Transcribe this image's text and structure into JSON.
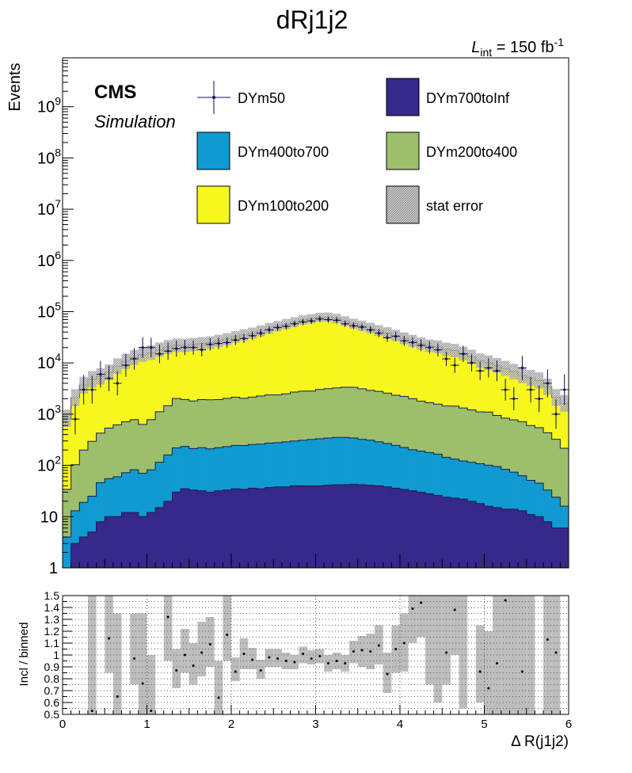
{
  "title": "dRj1j2",
  "lumi": {
    "symbol": "L",
    "subscript": "int",
    "value": " = 150 fb",
    "superscript": "-1"
  },
  "cms": {
    "label": "CMS",
    "sublabel": "Simulation"
  },
  "colors": {
    "DYm700toInf": "#35298a",
    "DYm400to700": "#0f9bd2",
    "DYm200to400": "#9cbf6c",
    "DYm100to200": "#f7f71e",
    "stat_error": "#aaaaaa",
    "DYm50": "#0d0d55"
  },
  "chart_data": [
    {
      "type": "area",
      "scale": "log",
      "ylabel": "Events",
      "xlim": [
        0,
        6
      ],
      "ylim": [
        1,
        9000000000
      ],
      "y_ticks": [
        {
          "value": 1,
          "label": "1"
        },
        {
          "value": 10,
          "label": "10"
        },
        {
          "value": 100,
          "label": "10",
          "exp": "2"
        },
        {
          "value": 1000,
          "label": "10",
          "exp": "3"
        },
        {
          "value": 10000,
          "label": "10",
          "exp": "4"
        },
        {
          "value": 100000,
          "label": "10",
          "exp": "5"
        },
        {
          "value": 1000000,
          "label": "10",
          "exp": "6"
        },
        {
          "value": 10000000,
          "label": "10",
          "exp": "7"
        },
        {
          "value": 100000000,
          "label": "10",
          "exp": "8"
        },
        {
          "value": 1000000000,
          "label": "10",
          "exp": "9"
        }
      ],
      "bin_width": 0.1,
      "legend": {
        "placement": "top",
        "entries": [
          "DYm50",
          "DYm700toInf",
          "DYm400to700",
          "DYm200to400",
          "DYm100to200",
          "stat error"
        ]
      },
      "stack_order": [
        "DYm700toInf",
        "DYm400to700",
        "DYm200to400",
        "DYm100to200"
      ],
      "series": [
        {
          "name": "DYm700toInf",
          "values": [
            1,
            3,
            4,
            5,
            8,
            10,
            10,
            12,
            12,
            10,
            12,
            15,
            20,
            30,
            35,
            33,
            32,
            30,
            32,
            33,
            35,
            34,
            36,
            35,
            37,
            38,
            38,
            40,
            40,
            40,
            40,
            41,
            42,
            42,
            43,
            42,
            41,
            40,
            38,
            36,
            34,
            32,
            30,
            28,
            26,
            24,
            23,
            22,
            20,
            18,
            16,
            15,
            14,
            14,
            13,
            11,
            10,
            8,
            6,
            6
          ]
        },
        {
          "name": "DYm400to700",
          "values": [
            3,
            10,
            15,
            20,
            38,
            45,
            50,
            60,
            70,
            60,
            70,
            100,
            140,
            190,
            200,
            180,
            190,
            180,
            190,
            200,
            210,
            210,
            220,
            225,
            235,
            240,
            250,
            260,
            270,
            280,
            290,
            300,
            310,
            310,
            300,
            280,
            270,
            250,
            230,
            210,
            190,
            170,
            160,
            150,
            140,
            120,
            110,
            100,
            95,
            90,
            85,
            80,
            70,
            60,
            50,
            40,
            35,
            25,
            18,
            10
          ]
        },
        {
          "name": "DYm200to400",
          "values": [
            30,
            90,
            180,
            270,
            380,
            480,
            560,
            640,
            700,
            560,
            700,
            1000,
            1300,
            1800,
            1700,
            1600,
            1700,
            1700,
            1700,
            1800,
            1900,
            1800,
            1900,
            2000,
            2100,
            2100,
            2200,
            2400,
            2500,
            2500,
            2700,
            2800,
            2900,
            3000,
            3000,
            2800,
            2600,
            2500,
            2300,
            2100,
            2000,
            1800,
            1600,
            1500,
            1400,
            1300,
            1300,
            1200,
            1100,
            1000,
            1000,
            850,
            750,
            700,
            650,
            550,
            500,
            400,
            300,
            200
          ]
        },
        {
          "name": "DYm100to200",
          "values": [
            800,
            2000,
            3500,
            4500,
            5000,
            6000,
            8000,
            10000,
            12000,
            14000,
            15000,
            17000,
            19000,
            20000,
            20000,
            21000,
            22000,
            23000,
            25000,
            27000,
            30000,
            33000,
            36000,
            40000,
            45000,
            50000,
            55000,
            60000,
            66000,
            70000,
            75000,
            75000,
            70000,
            62000,
            55000,
            50000,
            45000,
            40000,
            36000,
            32000,
            28000,
            25000,
            22000,
            20000,
            19000,
            17000,
            16000,
            14000,
            12000,
            10000,
            9000,
            8000,
            7000,
            6000,
            5000,
            4500,
            4000,
            3000,
            1800,
            1400
          ]
        },
        {
          "name": "DYm50",
          "values": [
            null,
            800,
            3000,
            3000,
            6000,
            5000,
            4000,
            9000,
            12000,
            20000,
            20000,
            15000,
            17000,
            19000,
            20000,
            20000,
            18000,
            23000,
            24000,
            25000,
            28000,
            30000,
            34000,
            38000,
            44000,
            49000,
            52000,
            58000,
            63000,
            66000,
            72000,
            70000,
            68000,
            58000,
            53000,
            50000,
            44000,
            38000,
            31000,
            33000,
            27000,
            25000,
            22000,
            20000,
            18000,
            12000,
            9000,
            15000,
            10000,
            7000,
            8000,
            7000,
            3000,
            2000,
            8000,
            3000,
            2000,
            4000,
            1000,
            3000
          ]
        }
      ]
    },
    {
      "type": "scatter",
      "xlabel": "Δ R(j1j2)",
      "ylabel": "Incl / binned",
      "xlim": [
        0,
        6
      ],
      "ylim": [
        0.5,
        1.5
      ],
      "y_tick_labels": [
        "0.5",
        "0.6",
        "0.7",
        "0.8",
        "0.9",
        "1",
        "1.1",
        "1.2",
        "1.3",
        "1.4",
        "1.5"
      ],
      "x_tick_labels": [
        "0",
        "1",
        "2",
        "3",
        "4",
        "5",
        "6"
      ],
      "grid": true,
      "x": [
        0.35,
        0.55,
        0.65,
        0.85,
        0.95,
        1.05,
        1.25,
        1.35,
        1.45,
        1.55,
        1.65,
        1.75,
        1.85,
        1.95,
        2.05,
        2.15,
        2.25,
        2.35,
        2.45,
        2.55,
        2.65,
        2.75,
        2.85,
        2.95,
        3.05,
        3.15,
        3.25,
        3.35,
        3.45,
        3.55,
        3.65,
        3.75,
        3.85,
        3.95,
        4.05,
        4.15,
        4.25,
        4.55,
        4.65,
        4.95,
        5.05,
        5.15,
        5.25,
        5.45,
        5.75,
        5.85
      ],
      "y": [
        0.53,
        1.14,
        0.65,
        0.97,
        0.76,
        0.53,
        1.32,
        0.87,
        1.0,
        0.91,
        1.02,
        1.09,
        0.64,
        1.17,
        0.86,
        1.01,
        0.96,
        0.87,
        0.98,
        0.97,
        0.95,
        0.94,
        1.01,
        0.97,
        0.99,
        0.93,
        0.95,
        0.93,
        1.03,
        1.04,
        1.03,
        1.08,
        0.84,
        1.05,
        1.1,
        1.39,
        1.44,
        1.02,
        1.38,
        0.86,
        0.72,
        0.93,
        1.46,
        0.86,
        1.13,
        1.02
      ],
      "err": [
        0.4,
        0.4,
        0.3,
        0.25,
        0.2,
        0.3,
        0.3,
        0.15,
        0.12,
        0.12,
        0.12,
        0.12,
        0.3,
        0.2,
        0.08,
        0.07,
        0.06,
        0.06,
        0.05,
        0.05,
        0.05,
        0.05,
        0.04,
        0.04,
        0.04,
        0.04,
        0.05,
        0.05,
        0.05,
        0.06,
        0.07,
        0.08,
        0.15,
        0.15,
        0.15,
        0.2,
        0.2,
        0.25,
        0.3,
        0.3,
        0.3,
        0.4,
        0.5,
        0.5,
        0.6,
        0.6
      ],
      "band_x": [
        0.35,
        0.55,
        0.65,
        0.85,
        0.95,
        1.05,
        1.25,
        1.35,
        1.45,
        1.55,
        1.65,
        1.75,
        1.85,
        1.95,
        2.05,
        2.15,
        2.25,
        2.35,
        2.45,
        2.55,
        2.65,
        2.75,
        2.85,
        2.95,
        3.05,
        3.15,
        3.25,
        3.35,
        3.45,
        3.55,
        3.65,
        3.75,
        3.85,
        3.95,
        4.05,
        4.15,
        4.25,
        4.35,
        4.45,
        4.55,
        4.65,
        4.75,
        4.95,
        5.05,
        5.15,
        5.25,
        5.35,
        5.45,
        5.55,
        5.75,
        5.85
      ],
      "band_lo": [
        0.5,
        0.85,
        0.5,
        0.75,
        0.5,
        0.5,
        0.95,
        0.72,
        0.85,
        0.75,
        0.82,
        0.9,
        0.5,
        0.95,
        0.78,
        0.88,
        0.88,
        0.8,
        0.9,
        0.9,
        0.88,
        0.88,
        0.93,
        0.92,
        0.93,
        0.86,
        0.88,
        0.86,
        0.93,
        0.9,
        0.88,
        0.92,
        0.68,
        0.85,
        0.86,
        1.1,
        1.15,
        0.75,
        0.6,
        0.75,
        1.0,
        0.55,
        0.6,
        0.5,
        0.5,
        0.5,
        0.5,
        0.5,
        0.5,
        0.5,
        0.5
      ],
      "band_hi": [
        1.5,
        1.5,
        1.35,
        1.35,
        1.35,
        1.0,
        1.5,
        1.05,
        1.22,
        1.1,
        1.28,
        1.32,
        0.95,
        1.5,
        0.98,
        1.14,
        1.06,
        0.96,
        1.05,
        1.05,
        1.02,
        1.0,
        1.07,
        1.04,
        1.05,
        1.0,
        1.02,
        1.0,
        1.12,
        1.16,
        1.18,
        1.25,
        1.02,
        1.25,
        1.35,
        1.5,
        1.5,
        1.5,
        1.5,
        1.5,
        1.5,
        1.5,
        1.25,
        1.2,
        1.5,
        1.5,
        1.5,
        1.5,
        1.5,
        1.5,
        1.5
      ]
    }
  ]
}
